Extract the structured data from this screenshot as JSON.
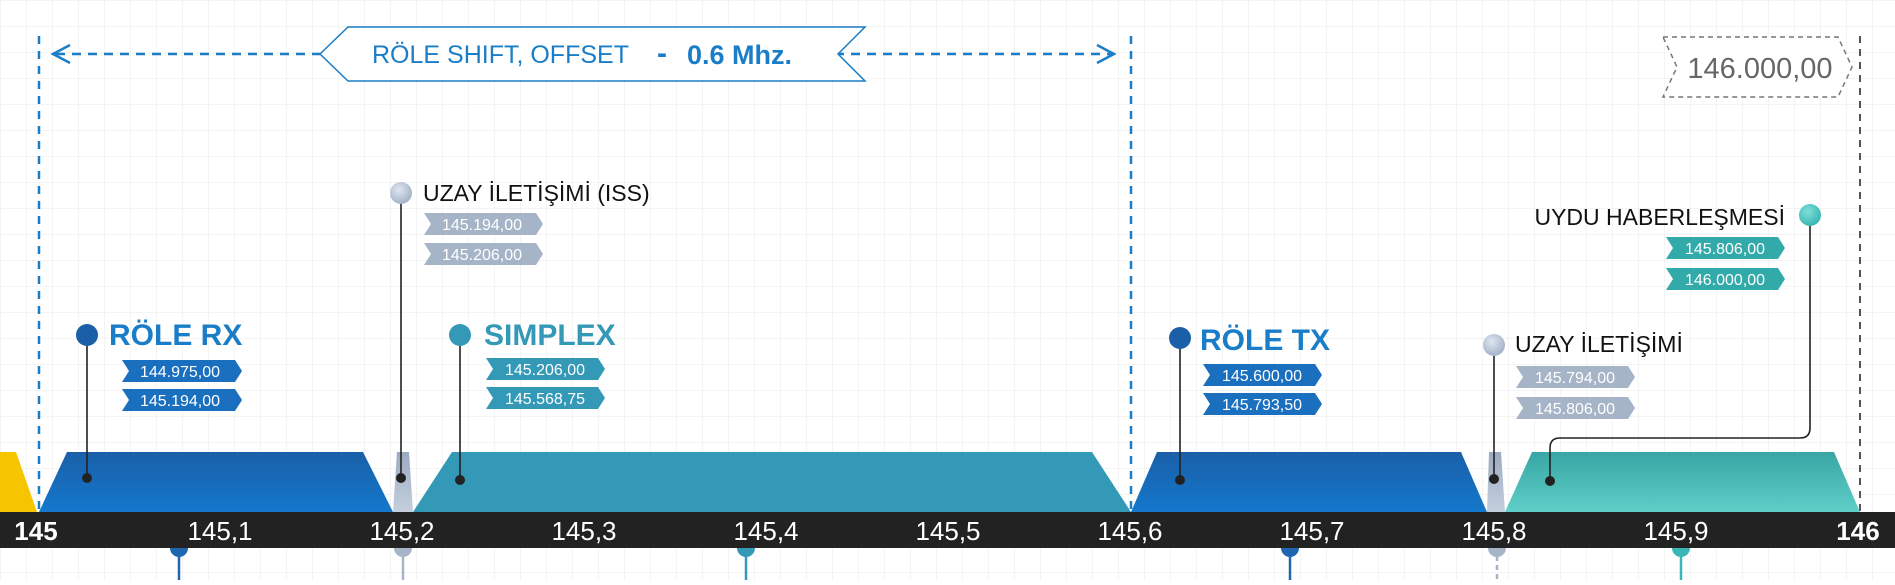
{
  "colors": {
    "rx": "#1872c4",
    "simplex": "#3399b7",
    "tx": "#1872c4",
    "iss": "#a6b4c8",
    "sat": "#3ab6b6",
    "prev": "#f7c400",
    "axis": "#222222",
    "offset": "#1a7dc8"
  },
  "offset_box": {
    "label": "RÖLE SHIFT, OFFSET",
    "dash": "-",
    "value": "0.6 Mhz."
  },
  "corner_tag": "146.000,00",
  "axis": {
    "ticks": [
      "145",
      "145,1",
      "145,2",
      "145,3",
      "145,4",
      "145,5",
      "145,6",
      "145,7",
      "145,8",
      "145,9",
      "146"
    ]
  },
  "segments": {
    "role_rx": {
      "title": "RÖLE RX",
      "freqs": [
        "144.975,00",
        "145.194,00"
      ]
    },
    "iss_1": {
      "title": "UZAY İLETİŞİMİ (ISS)",
      "freqs": [
        "145.194,00",
        "145.206,00"
      ]
    },
    "simplex": {
      "title": "SIMPLEX",
      "freqs": [
        "145.206,00",
        "145.568,75"
      ]
    },
    "role_tx": {
      "title": "RÖLE TX",
      "freqs": [
        "145.600,00",
        "145.793,50"
      ]
    },
    "iss_2": {
      "title": "UZAY İLETİŞİMİ",
      "freqs": [
        "145.794,00",
        "145.806,00"
      ]
    },
    "satellite": {
      "title": "UYDU HABERLEŞMESİ",
      "freqs": [
        "145.806,00",
        "146.000,00"
      ]
    }
  }
}
